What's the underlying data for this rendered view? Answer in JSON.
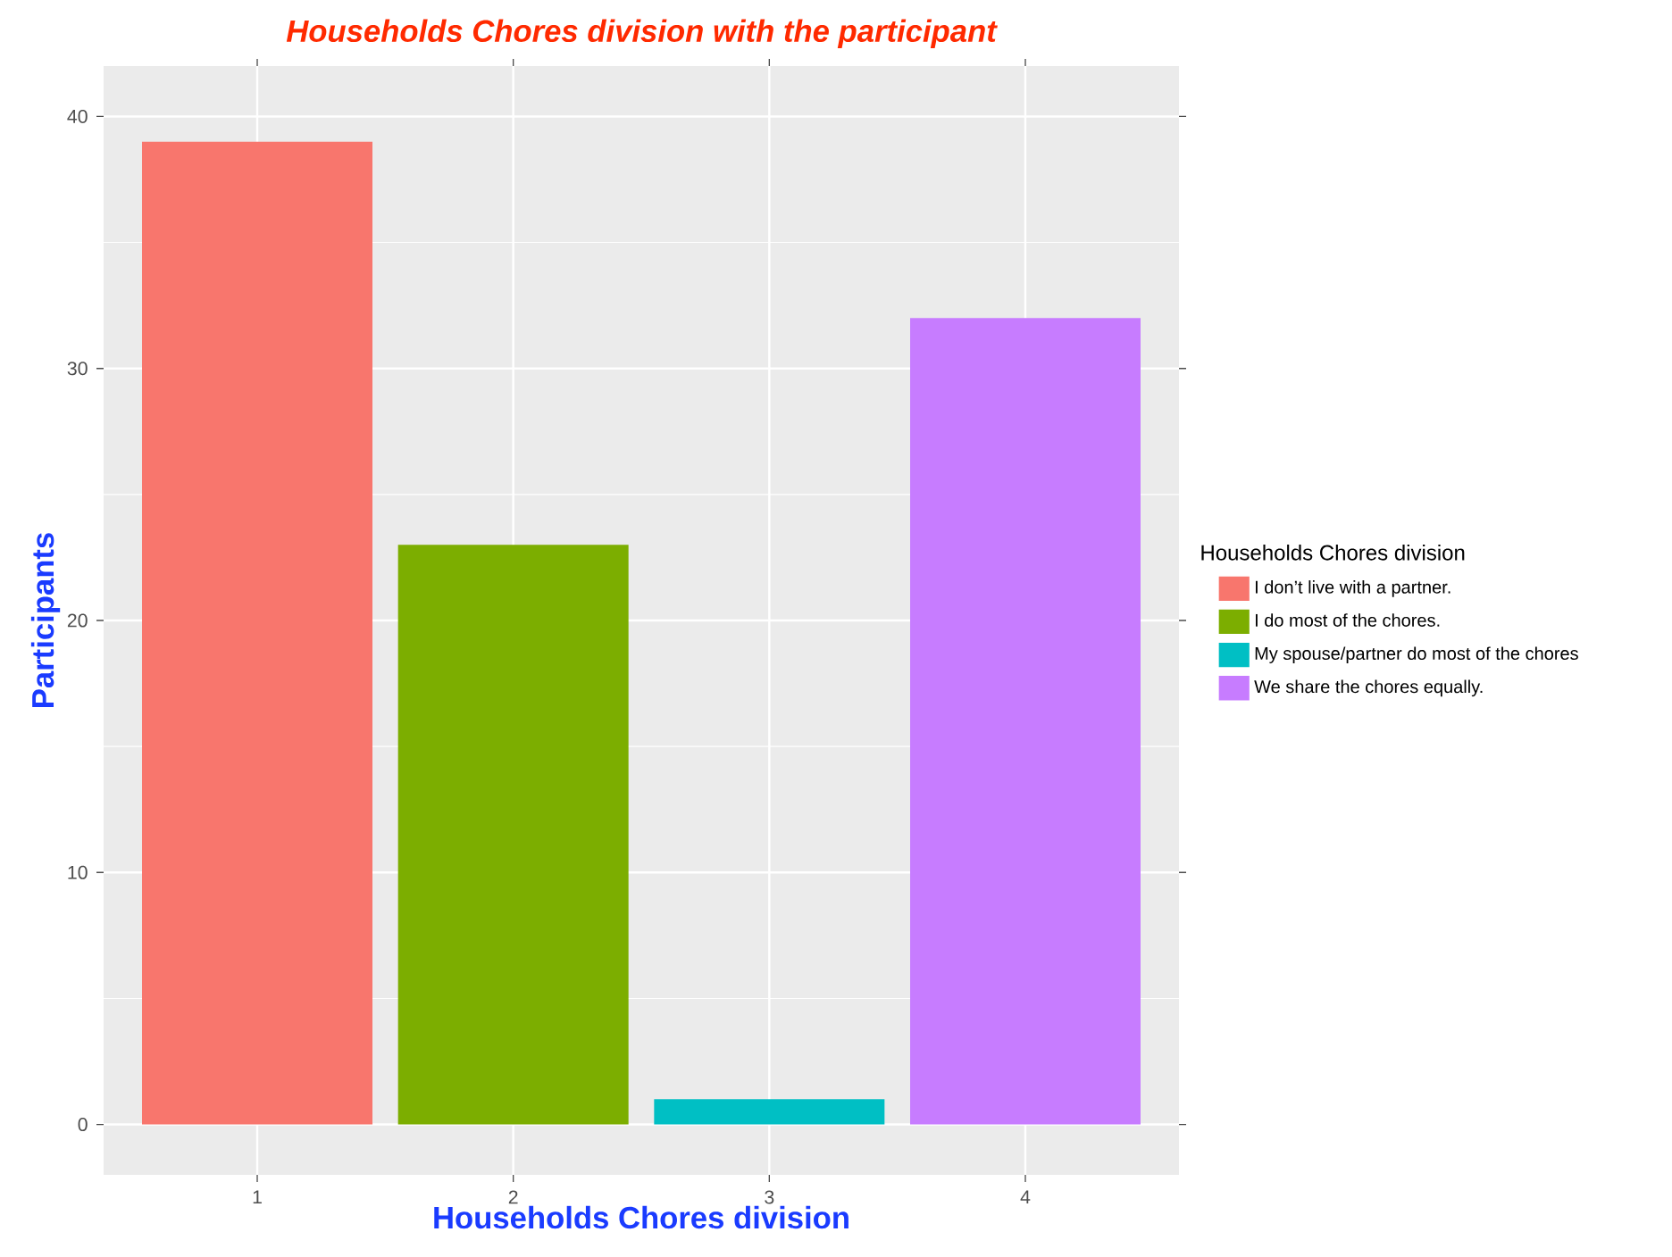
{
  "chart_data": {
    "type": "bar",
    "title": "Households Chores division with the participant",
    "xlabel": "Households Chores division",
    "ylabel": "Participants",
    "legend_title": "Households Chores division",
    "categories": [
      "1",
      "2",
      "3",
      "4"
    ],
    "series": [
      {
        "name": "I don’t live with a partner.",
        "color": "#F8766D",
        "values": [
          39,
          null,
          null,
          null
        ]
      },
      {
        "name": "I do most of the chores.",
        "color": "#7CAE00",
        "values": [
          null,
          23,
          null,
          null
        ]
      },
      {
        "name": "My spouse/partner do most of the chores",
        "color": "#00BFC4",
        "values": [
          null,
          null,
          1,
          null
        ]
      },
      {
        "name": "We share the chores equally.",
        "color": "#C77CFF",
        "values": [
          null,
          null,
          null,
          32
        ]
      }
    ],
    "ylim": [
      -2,
      42
    ],
    "yticks": [
      0,
      10,
      20,
      30,
      40
    ],
    "grid": true,
    "legend": "right"
  }
}
